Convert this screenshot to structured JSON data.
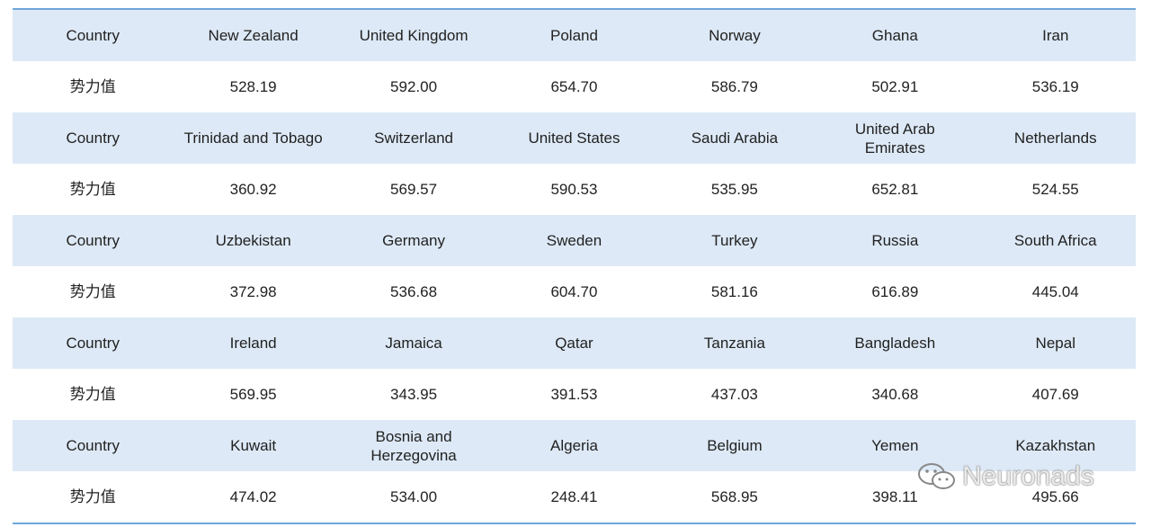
{
  "table": {
    "rows": [
      [
        "Country",
        "New Zealand",
        "United Kingdom",
        "Poland",
        "Norway",
        "Ghana",
        "Iran"
      ],
      [
        "势力值",
        "528.19",
        "592.00",
        "654.70",
        "586.79",
        "502.91",
        "536.19"
      ],
      [
        "Country",
        "Trinidad and Tobago",
        "Switzerland",
        "United States",
        "Saudi Arabia",
        "United Arab Emirates",
        "Netherlands"
      ],
      [
        "势力值",
        "360.92",
        "569.57",
        "590.53",
        "535.95",
        "652.81",
        "524.55"
      ],
      [
        "Country",
        "Uzbekistan",
        "Germany",
        "Sweden",
        "Turkey",
        "Russia",
        "South Africa"
      ],
      [
        "势力值",
        "372.98",
        "536.68",
        "604.70",
        "581.16",
        "616.89",
        "445.04"
      ],
      [
        "Country",
        "Ireland",
        "Jamaica",
        "Qatar",
        "Tanzania",
        "Bangladesh",
        "Nepal"
      ],
      [
        "势力值",
        "569.95",
        "343.95",
        "391.53",
        "437.03",
        "340.68",
        "407.69"
      ],
      [
        "Country",
        "Kuwait",
        "Bosnia and Herzegovina",
        "Algeria",
        "Belgium",
        "Yemen",
        "Kazakhstan"
      ],
      [
        "势力值",
        "474.02",
        "534.00",
        "248.41",
        "568.95",
        "398.11",
        "495.66"
      ]
    ]
  },
  "watermark": "Neuronads"
}
